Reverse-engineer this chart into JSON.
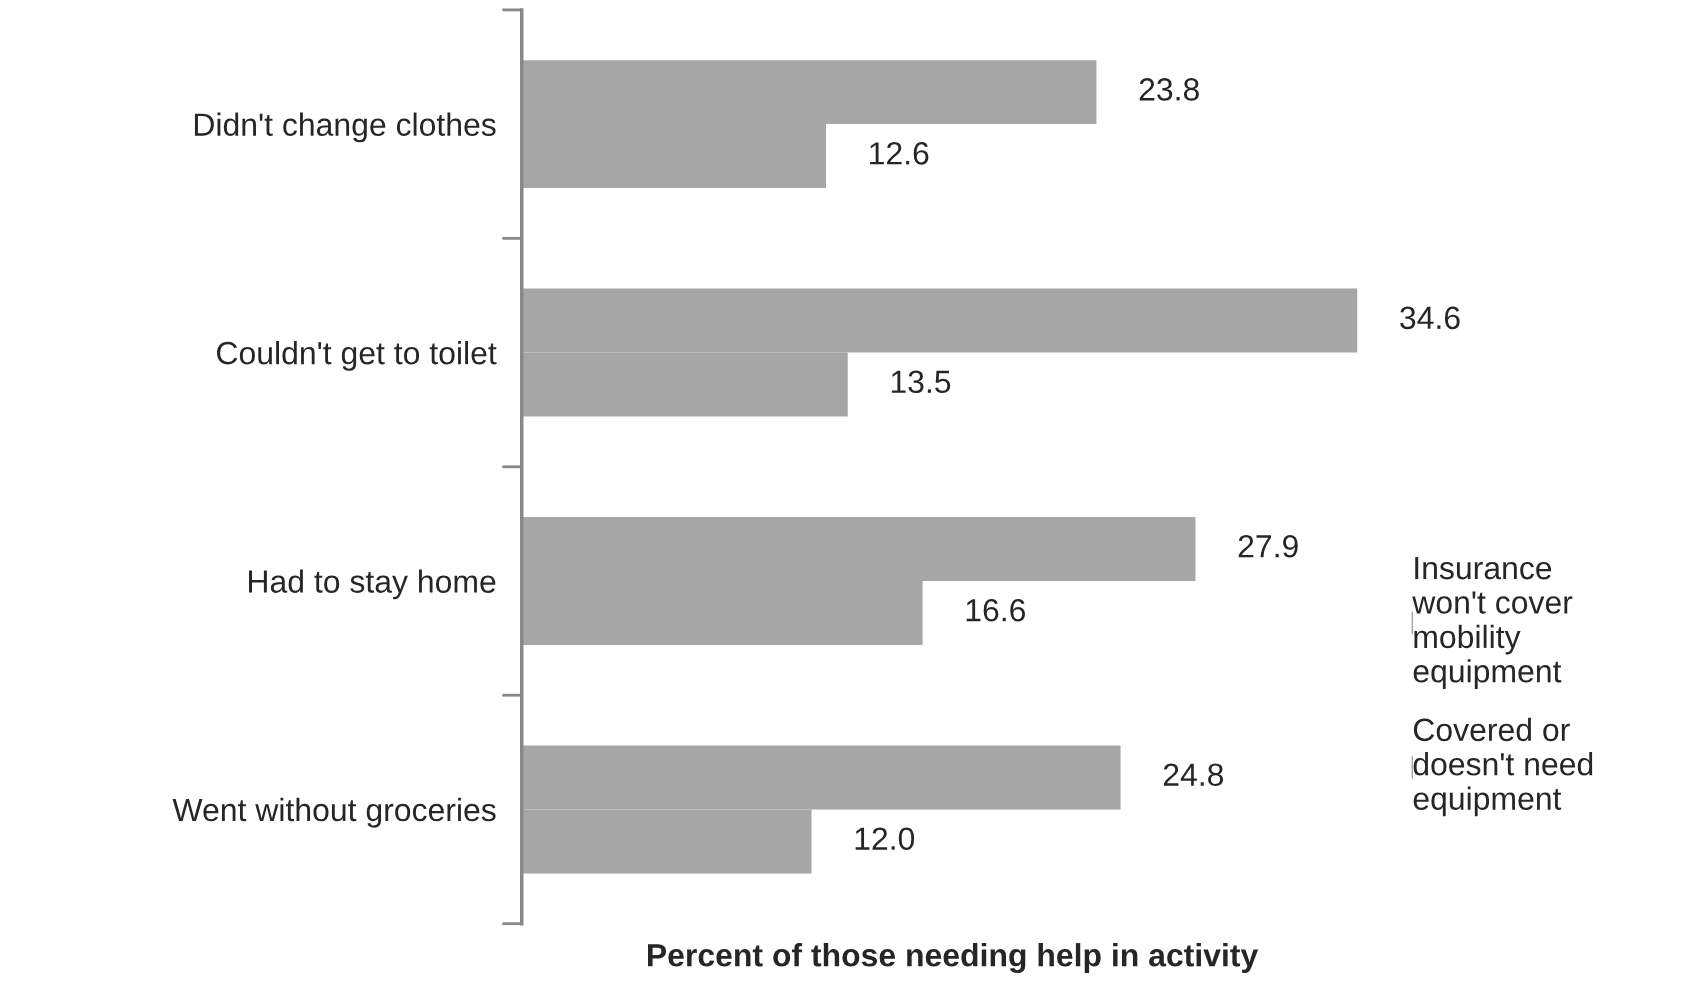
{
  "chart_data": {
    "type": "bar",
    "orientation": "horizontal",
    "xlabel": "Percent of those needing help in activity",
    "categories": [
      "Didn't change clothes",
      "Couldn't get to toilet",
      "Had to stay home",
      "Went without groceries"
    ],
    "series": [
      {
        "name": "Insurance won't cover mobility equipment",
        "color": "#a6a6a6",
        "values": [
          23.8,
          34.6,
          27.9,
          24.8
        ],
        "value_labels": [
          "23.8",
          "34.6",
          "27.9",
          "24.8"
        ]
      },
      {
        "name": "Covered or doesn't need equipment",
        "color": "#a6a6a6",
        "values": [
          12.6,
          13.5,
          16.6,
          12.0
        ],
        "value_labels": [
          "12.6",
          "13.5",
          "16.6",
          "12.0"
        ]
      }
    ],
    "legend": "right",
    "grid": false
  }
}
